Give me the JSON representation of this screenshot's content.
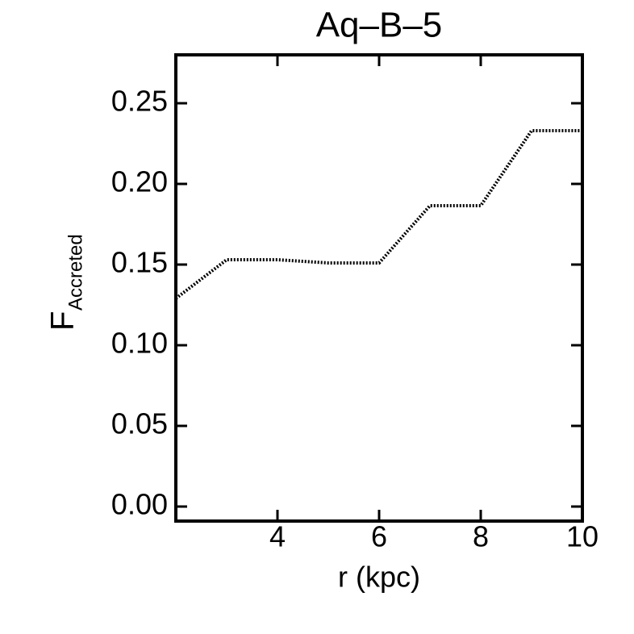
{
  "chart_data": {
    "type": "line",
    "title": "Aq–B–5",
    "xlabel": "r (kpc)",
    "ylabel": "F",
    "ylabel_subscript": "Accreted",
    "x": [
      2,
      3,
      4,
      5,
      6,
      7,
      8,
      9,
      10
    ],
    "series": [
      {
        "color": "#000000",
        "values": [
          0.129,
          0.153,
          0.153,
          0.151,
          0.151,
          0.1865,
          0.1865,
          0.233,
          0.233
        ]
      }
    ],
    "xlim": [
      2,
      10
    ],
    "xticks": [
      4,
      6,
      8,
      10
    ],
    "ylim": [
      -0.009,
      0.28
    ],
    "yticks": [
      {
        "value": 0,
        "label": "0.00"
      },
      0.05,
      {
        "value": 0.1,
        "label": "0.10"
      },
      0.15,
      {
        "value": 0.2,
        "label": "0.20"
      },
      0.25
    ]
  }
}
